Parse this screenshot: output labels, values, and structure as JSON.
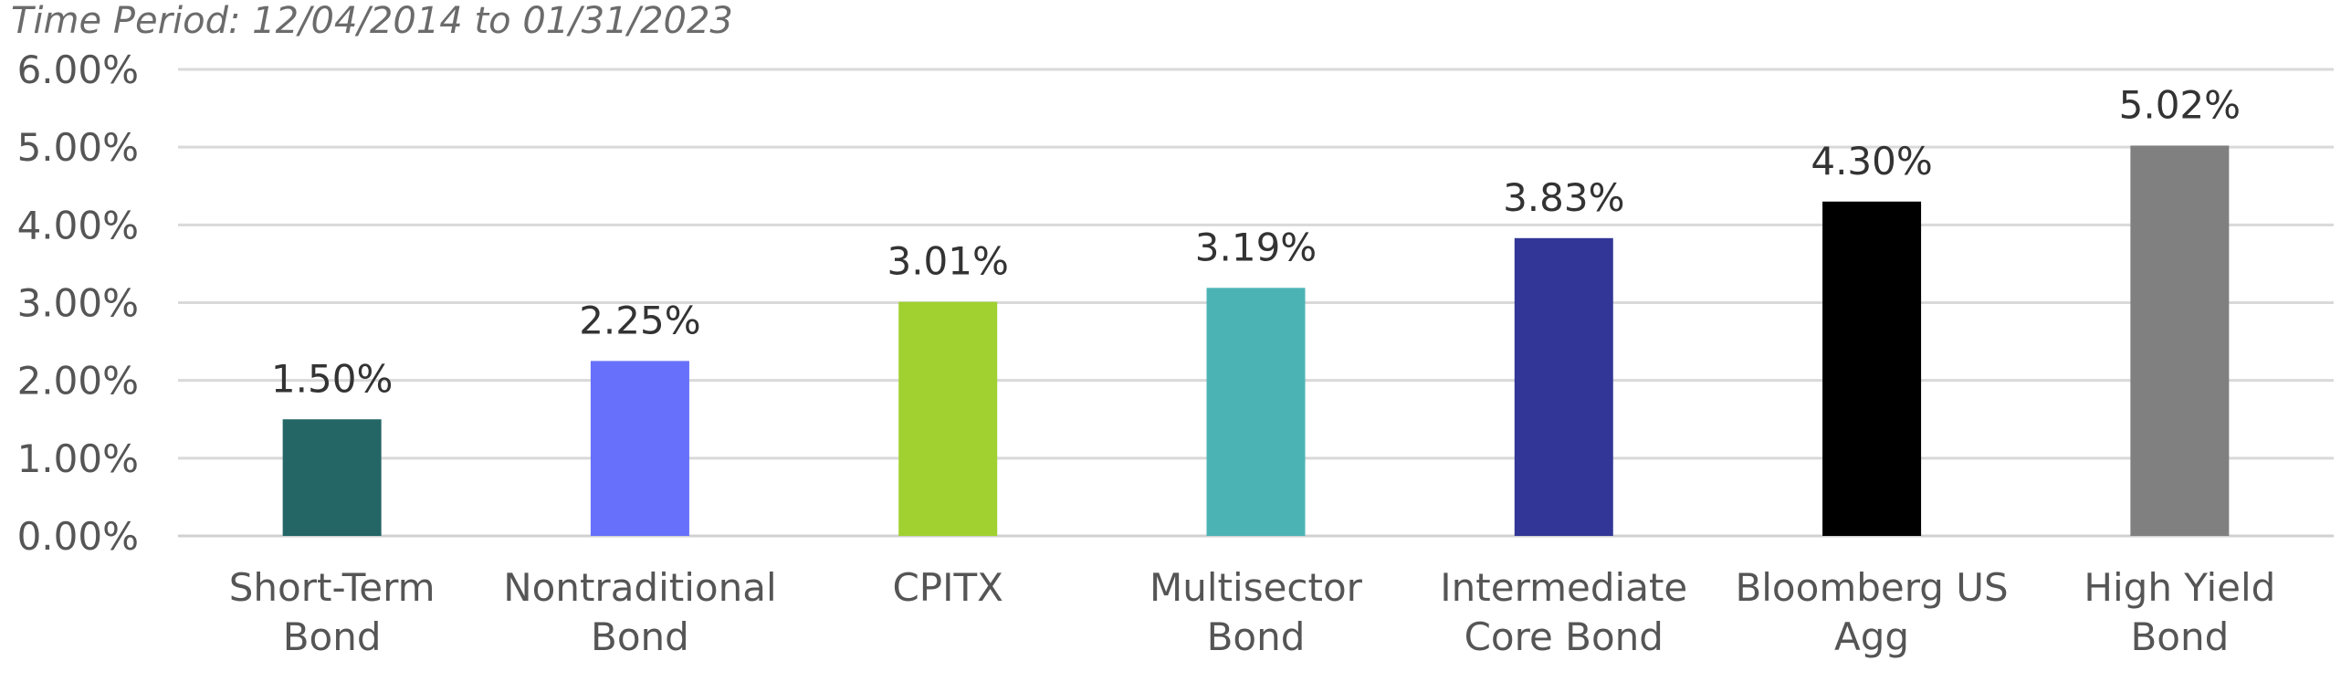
{
  "chart_data": {
    "type": "bar",
    "subtitle": "Time Period: 12/04/2014 to 01/31/2023",
    "categories": [
      [
        "Short-Term",
        "Bond"
      ],
      [
        "Nontraditional",
        "Bond"
      ],
      [
        "CPITX"
      ],
      [
        "Multisector",
        "Bond"
      ],
      [
        "Intermediate",
        "Core Bond"
      ],
      [
        "Bloomberg US",
        "Agg"
      ],
      [
        "High Yield",
        "Bond"
      ]
    ],
    "values": [
      1.5,
      2.25,
      3.01,
      3.19,
      3.83,
      4.3,
      5.02
    ],
    "data_labels": [
      "1.50%",
      "2.25%",
      "3.01%",
      "3.19%",
      "3.83%",
      "4.30%",
      "5.02%"
    ],
    "colors": [
      "#246666",
      "#6670fa",
      "#a0d130",
      "#4cb3b5",
      "#323696",
      "#000000",
      "#808080"
    ],
    "ylim": [
      0,
      6
    ],
    "yticks": [
      0,
      1,
      2,
      3,
      4,
      5,
      6
    ],
    "ytick_labels": [
      "0.00%",
      "1.00%",
      "2.00%",
      "3.00%",
      "4.00%",
      "5.00%",
      "6.00%"
    ],
    "grid": true,
    "legend": "none"
  }
}
